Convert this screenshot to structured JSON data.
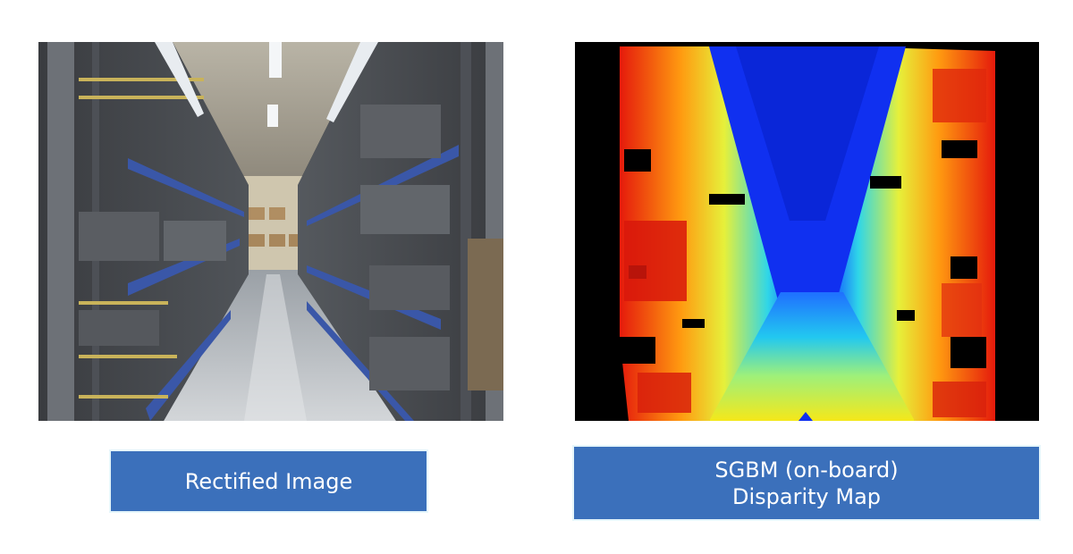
{
  "left_panel": {
    "image": "warehouse-aisle-photo",
    "caption": "Rectified Image"
  },
  "right_panel": {
    "image": "disparity-map-heatmap",
    "caption_line1": "SGBM (on-board)",
    "caption_line2": "Disparity Map"
  },
  "colors": {
    "caption_background": "#3b70bb",
    "caption_text": "#ffffff",
    "caption_border": "#e6f6fb",
    "disparity_background": "#000000"
  }
}
